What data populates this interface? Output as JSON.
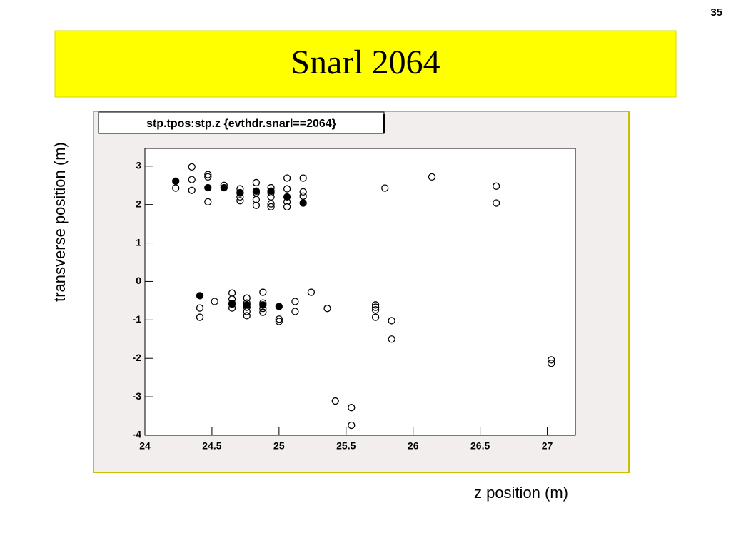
{
  "page_number": "35",
  "slide_title": "Snarl 2064",
  "chart_data": {
    "type": "scatter",
    "title": "stp.tpos:stp.z {evthdr.snarl==2064}",
    "x_label": "z position (m)",
    "y_label": "transverse position (m)",
    "xlim": [
      24,
      27.21
    ],
    "ylim": [
      -4,
      3.46
    ],
    "xticks": [
      24,
      24.5,
      25,
      25.5,
      26,
      26.5,
      27
    ],
    "yticks": [
      -4,
      -3,
      -2,
      -1,
      0,
      1,
      2,
      3
    ],
    "series": [
      {
        "marker": "open",
        "color": "#000000",
        "x": [
          24.23,
          24.35,
          24.35,
          24.35,
          24.47,
          24.47,
          24.47,
          24.59,
          24.71,
          24.71,
          24.71,
          24.71,
          24.83,
          24.83,
          24.83,
          24.83,
          24.94,
          24.94,
          24.94,
          24.94,
          24.94,
          25.06,
          25.06,
          25.06,
          25.06,
          25.18,
          25.18,
          25.18,
          25.79,
          26.14,
          26.62,
          26.62,
          24.41,
          24.41,
          24.52,
          24.65,
          24.65,
          24.65,
          24.65,
          24.76,
          24.76,
          24.76,
          24.76,
          24.76,
          24.88,
          24.88,
          24.88,
          24.88,
          25.0,
          25.0,
          25.12,
          25.12,
          25.24,
          25.36,
          25.42,
          25.54,
          25.54,
          25.72,
          25.72,
          25.72,
          25.72,
          25.84,
          25.84,
          27.03,
          27.03
        ],
        "values": [
          2.43,
          2.98,
          2.65,
          2.37,
          2.78,
          2.72,
          2.07,
          2.5,
          2.41,
          2.3,
          2.2,
          2.1,
          2.57,
          2.31,
          2.13,
          1.98,
          2.44,
          2.31,
          2.2,
          2.02,
          1.94,
          2.69,
          2.41,
          2.07,
          1.94,
          2.69,
          2.33,
          2.22,
          2.43,
          2.72,
          2.48,
          2.04,
          -0.69,
          -0.93,
          -0.52,
          -0.3,
          -0.46,
          -0.57,
          -0.69,
          -0.43,
          -0.56,
          -0.67,
          -0.78,
          -0.89,
          -0.28,
          -0.56,
          -0.7,
          -0.8,
          -0.98,
          -1.04,
          -0.52,
          -0.78,
          -0.28,
          -0.7,
          -3.11,
          -3.28,
          -3.74,
          -0.61,
          -0.67,
          -0.74,
          -0.93,
          -1.02,
          -1.5,
          -2.04,
          -2.13
        ]
      },
      {
        "marker": "filled",
        "color": "#000000",
        "x": [
          24.23,
          24.47,
          24.59,
          24.71,
          24.83,
          24.94,
          25.06,
          25.18,
          24.41,
          24.65,
          24.76,
          24.88,
          25.0
        ],
        "values": [
          2.61,
          2.44,
          2.44,
          2.31,
          2.35,
          2.35,
          2.2,
          2.04,
          -0.37,
          -0.59,
          -0.61,
          -0.61,
          -0.65
        ]
      }
    ]
  }
}
